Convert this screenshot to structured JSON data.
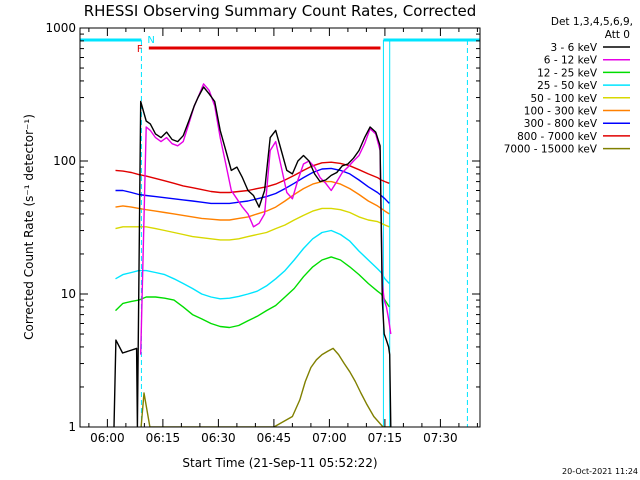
{
  "chart_data": {
    "type": "line",
    "title": "RHESSI Observing Summary Count Rates, Corrected",
    "xlabel": "Start Time (21-Sep-11 05:52:22)",
    "ylabel": "Corrected Count Rate (s⁻¹ detector⁻¹)",
    "yscale": "log",
    "ylim": [
      1,
      1000
    ],
    "xlim_minutes": [
      -7.4,
      100.7
    ],
    "x_unit": "minutes after 06:00 UT",
    "xticks": [
      {
        "label": "06:00",
        "value": 0
      },
      {
        "label": "06:15",
        "value": 15
      },
      {
        "label": "06:30",
        "value": 30
      },
      {
        "label": "06:45",
        "value": 45
      },
      {
        "label": "07:00",
        "value": 60
      },
      {
        "label": "07:15",
        "value": 75
      },
      {
        "label": "07:30",
        "value": 90
      }
    ],
    "yticks": [
      {
        "label": "1",
        "value": 1
      },
      {
        "label": "10",
        "value": 10
      },
      {
        "label": "100",
        "value": 100
      },
      {
        "label": "1000",
        "value": 1000
      }
    ],
    "legend_header": "Det 1,3,4,5,6,9,",
    "legend_att": "Att 0",
    "legend_position": "right",
    "markers": {
      "saa_label": "N",
      "flare_label": "F",
      "night_color": "#00e5ff",
      "flare_color": "#e00000",
      "night_intervals": [
        [
          -7.4,
          9.2
        ],
        [
          74.6,
          100.7
        ]
      ],
      "flare_interval": [
        11.2,
        73.8
      ],
      "dashed_lines": [
        9.2,
        97.3
      ],
      "solid_lines": [
        74.6,
        76.3
      ]
    },
    "series": [
      {
        "name": "3 - 6 keV",
        "color": "#000000",
        "x": [
          1.8,
          2.3,
          4.1,
          7.9,
          8.1,
          9.0,
          10.5,
          11.6,
          13.0,
          14.5,
          16.0,
          17.5,
          19.0,
          20.5,
          22.0,
          23.5,
          24.5,
          26.0,
          27.5,
          29.0,
          30.5,
          32.0,
          33.5,
          35.0,
          36.5,
          38.0,
          39.5,
          41.0,
          42.5,
          44.0,
          45.5,
          47.0,
          48.5,
          50.0,
          51.5,
          53.0,
          54.5,
          56.0,
          57.5,
          59.0,
          60.5,
          62.0,
          63.5,
          65.0,
          66.5,
          68.0,
          69.5,
          71.0,
          72.5,
          73.7,
          74.3,
          74.8,
          75.4,
          76.0,
          76.3,
          76.6
        ],
        "y": [
          1,
          4.5,
          3.6,
          3.9,
          1,
          280,
          200,
          190,
          160,
          150,
          165,
          145,
          140,
          155,
          200,
          260,
          300,
          360,
          320,
          280,
          170,
          120,
          85,
          90,
          75,
          60,
          55,
          45,
          60,
          150,
          170,
          120,
          85,
          80,
          100,
          110,
          100,
          80,
          70,
          72,
          78,
          82,
          92,
          95,
          105,
          120,
          150,
          180,
          165,
          130,
          9,
          5,
          4.5,
          4,
          3.5,
          1
        ]
      },
      {
        "name": "6 - 12 keV",
        "color": "#e600e6",
        "x": [
          9.0,
          10.5,
          11.6,
          13.0,
          14.5,
          16.0,
          17.5,
          19.0,
          20.5,
          22.0,
          23.5,
          24.5,
          26.0,
          27.5,
          29.0,
          30.5,
          32.0,
          33.5,
          35.0,
          36.5,
          38.0,
          39.5,
          41.0,
          42.5,
          44.0,
          45.5,
          47.0,
          48.5,
          50.0,
          51.5,
          53.0,
          54.5,
          56.0,
          57.5,
          59.0,
          60.5,
          62.0,
          63.5,
          65.0,
          66.5,
          68.0,
          69.5,
          71.0,
          72.5,
          73.7,
          74.3,
          74.8,
          75.4,
          76.0,
          76.6
        ],
        "y": [
          3.5,
          180,
          170,
          150,
          140,
          150,
          135,
          130,
          140,
          190,
          260,
          300,
          380,
          340,
          260,
          150,
          95,
          60,
          52,
          45,
          40,
          32,
          34,
          40,
          120,
          140,
          90,
          58,
          52,
          72,
          95,
          100,
          90,
          75,
          68,
          60,
          70,
          82,
          90,
          100,
          110,
          135,
          175,
          160,
          120,
          12,
          9,
          8,
          6.5,
          5
        ]
      },
      {
        "name": "12 - 25 keV",
        "color": "#00dd00",
        "x": [
          2.2,
          4.2,
          6.5,
          8.5,
          10.5,
          13.0,
          15.5,
          18.0,
          20.5,
          23.0,
          25.5,
          28.0,
          30.5,
          33.0,
          35.5,
          38.0,
          40.5,
          43.0,
          45.5,
          48.0,
          50.5,
          53.0,
          55.5,
          58.0,
          60.5,
          63.0,
          65.5,
          68.0,
          70.5,
          73.0,
          74.0,
          75.0,
          76.2
        ],
        "y": [
          7.5,
          8.5,
          8.8,
          9.0,
          9.5,
          9.5,
          9.3,
          9.0,
          8.0,
          7.0,
          6.5,
          6.0,
          5.7,
          5.6,
          5.8,
          6.3,
          6.8,
          7.5,
          8.2,
          9.5,
          11.0,
          13.5,
          16.0,
          18.0,
          19.0,
          18.0,
          16.0,
          14.0,
          12.0,
          10.5,
          10.0,
          9.0,
          8.0
        ]
      },
      {
        "name": "25 - 50 keV",
        "color": "#00e5ff",
        "x": [
          2.2,
          4.2,
          6.5,
          8.5,
          10.5,
          13.0,
          15.5,
          18.0,
          20.5,
          23.0,
          25.5,
          28.0,
          30.5,
          33.0,
          35.5,
          38.0,
          40.5,
          43.0,
          45.5,
          48.0,
          50.5,
          53.0,
          55.5,
          58.0,
          60.5,
          63.0,
          65.5,
          68.0,
          70.5,
          73.0,
          74.0,
          75.0,
          76.2
        ],
        "y": [
          13.0,
          14.0,
          14.5,
          15.0,
          15.0,
          14.5,
          14.0,
          13.0,
          12.0,
          11.0,
          10.0,
          9.5,
          9.2,
          9.3,
          9.6,
          10.0,
          10.5,
          11.5,
          13.0,
          15.0,
          18.0,
          22.0,
          26.0,
          29.0,
          30.0,
          28.0,
          25.0,
          21.0,
          18.0,
          15.5,
          14.5,
          13.0,
          12.0
        ]
      },
      {
        "name": "50 - 100 keV",
        "color": "#d8d800",
        "x": [
          2.2,
          4.2,
          6.5,
          8.5,
          10.5,
          13.0,
          15.5,
          18.0,
          20.5,
          23.0,
          25.5,
          28.0,
          30.5,
          33.0,
          35.5,
          38.0,
          40.5,
          43.0,
          45.5,
          48.0,
          50.5,
          53.0,
          55.5,
          58.0,
          60.5,
          63.0,
          65.5,
          68.0,
          70.5,
          73.0,
          74.0,
          75.0,
          76.2
        ],
        "y": [
          31,
          32,
          32,
          32,
          32,
          31,
          30,
          29,
          28,
          27,
          26.5,
          26,
          25.5,
          25.5,
          26,
          27,
          28,
          29,
          31,
          33,
          36,
          39,
          42,
          44,
          44,
          43,
          41,
          38,
          36,
          35,
          34,
          33,
          32
        ]
      },
      {
        "name": "100 - 300 keV",
        "color": "#ff8000",
        "x": [
          2.2,
          4.2,
          6.5,
          8.5,
          10.5,
          13.0,
          15.5,
          18.0,
          20.5,
          23.0,
          25.5,
          28.0,
          30.5,
          33.0,
          35.5,
          38.0,
          40.5,
          43.0,
          45.5,
          48.0,
          50.5,
          53.0,
          55.5,
          58.0,
          60.5,
          63.0,
          65.5,
          68.0,
          70.5,
          73.0,
          74.0,
          75.0,
          76.2
        ],
        "y": [
          45,
          46,
          45,
          44,
          43,
          42,
          41,
          40,
          39,
          38,
          37,
          36.5,
          36,
          36,
          37,
          38,
          40,
          42,
          45,
          50,
          56,
          62,
          67,
          70,
          70,
          67,
          62,
          56,
          50,
          46,
          44,
          42,
          40
        ]
      },
      {
        "name": "300 - 800 keV",
        "color": "#0000ff",
        "x": [
          2.2,
          4.2,
          6.5,
          8.5,
          10.5,
          13.0,
          15.5,
          18.0,
          20.5,
          23.0,
          25.5,
          28.0,
          30.5,
          33.0,
          35.5,
          38.0,
          40.5,
          43.0,
          45.5,
          48.0,
          50.5,
          53.0,
          55.5,
          58.0,
          60.5,
          63.0,
          65.5,
          68.0,
          70.5,
          73.0,
          74.0,
          75.0,
          76.2
        ],
        "y": [
          60,
          60,
          58,
          56,
          55,
          54,
          53,
          52,
          51,
          50,
          49,
          48,
          48,
          48,
          49,
          50,
          52,
          54,
          57,
          62,
          68,
          75,
          82,
          87,
          88,
          85,
          80,
          72,
          64,
          58,
          55,
          52,
          48
        ]
      },
      {
        "name": "800 - 7000 keV",
        "color": "#e00000",
        "x": [
          2.2,
          4.2,
          6.5,
          8.5,
          10.5,
          13.0,
          15.5,
          18.0,
          20.5,
          23.0,
          25.5,
          28.0,
          30.5,
          33.0,
          35.5,
          38.0,
          40.5,
          43.0,
          45.5,
          48.0,
          50.5,
          53.0,
          55.5,
          58.0,
          60.5,
          63.0,
          65.5,
          68.0,
          70.5,
          73.0,
          74.0,
          75.0,
          76.2
        ],
        "y": [
          85,
          84,
          82,
          79,
          77,
          74,
          71,
          68,
          65,
          63,
          61,
          59,
          58,
          58,
          59,
          60,
          62,
          64,
          67,
          72,
          78,
          85,
          92,
          97,
          98,
          96,
          92,
          86,
          80,
          75,
          72,
          70,
          68
        ]
      },
      {
        "name": "7000 - 15000 keV",
        "color": "#808000",
        "x": [
          9.1,
          9.9,
          11.5,
          20.0,
          30.0,
          40.0,
          45.0,
          50.0,
          52.0,
          53.5,
          55.0,
          56.5,
          58.0,
          59.5,
          61.0,
          62.5,
          64.0,
          65.5,
          67.0,
          68.5,
          70.0,
          72.0,
          74.5,
          76.6
        ],
        "y": [
          1,
          1.8,
          1,
          1,
          1,
          1,
          1,
          1.2,
          1.6,
          2.2,
          2.8,
          3.2,
          3.5,
          3.7,
          3.9,
          3.5,
          3.0,
          2.6,
          2.2,
          1.8,
          1.5,
          1.2,
          1,
          1
        ]
      }
    ]
  },
  "footer": {
    "timestamp": "20-Oct-2021 11:24"
  }
}
